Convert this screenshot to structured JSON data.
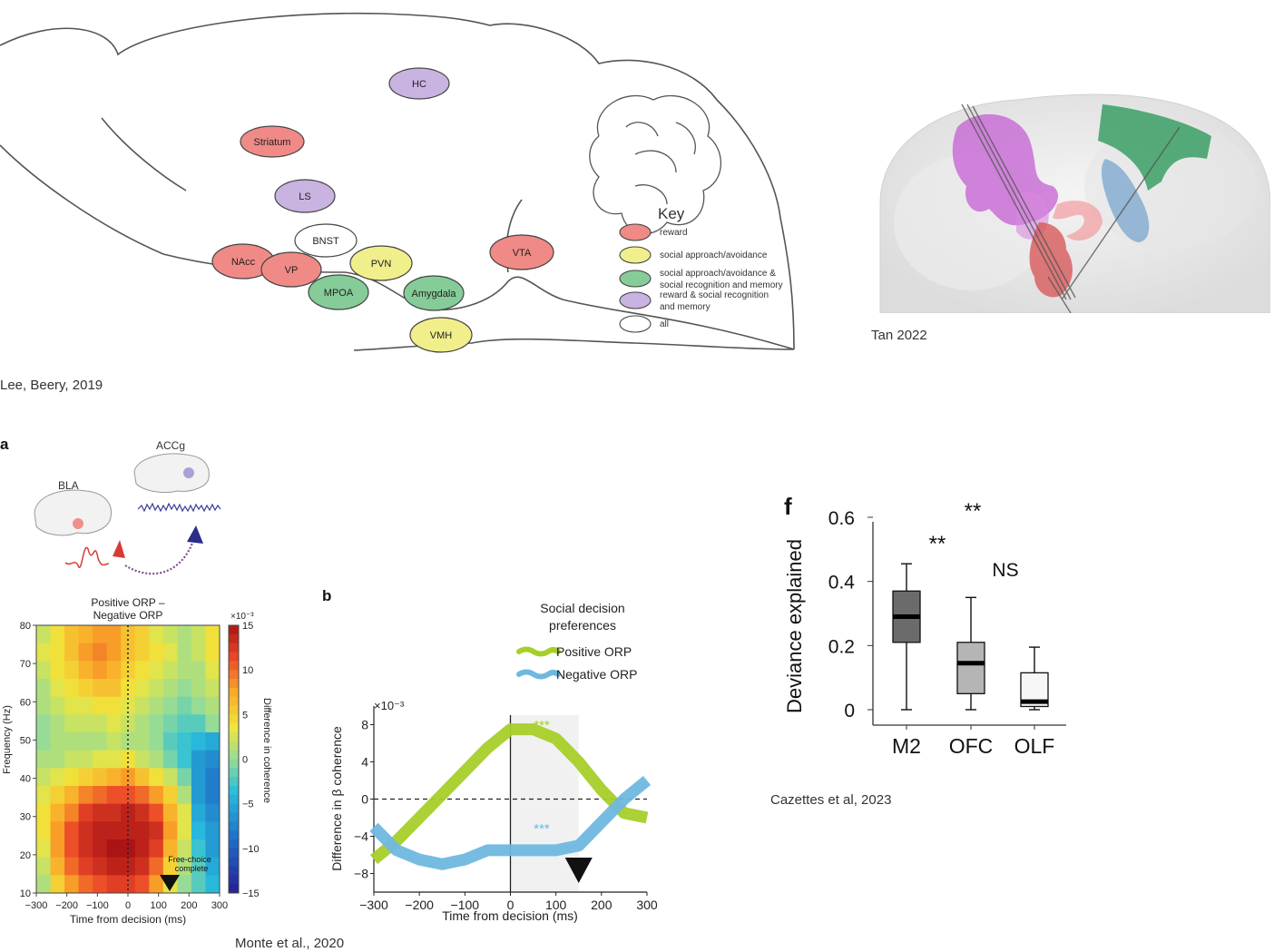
{
  "panel1": {
    "regions": [
      {
        "label": "HC",
        "color": "#c9b3e0"
      },
      {
        "label": "Striatum",
        "color": "#f08a86"
      },
      {
        "label": "LS",
        "color": "#c9b3e0"
      },
      {
        "label": "BNST",
        "color": "#ffffff"
      },
      {
        "label": "NAcc",
        "color": "#f08a86"
      },
      {
        "label": "VP",
        "color": "#f08a86"
      },
      {
        "label": "PVN",
        "color": "#f1ef8c"
      },
      {
        "label": "MPOA",
        "color": "#85cc98"
      },
      {
        "label": "Amygdala",
        "color": "#85cc98"
      },
      {
        "label": "VTA",
        "color": "#f08a86"
      },
      {
        "label": "VMH",
        "color": "#f1ef8c"
      }
    ],
    "key_title": "Key",
    "key": [
      {
        "color": "#f08a86",
        "lines": [
          "reward"
        ]
      },
      {
        "color": "#f1ef8c",
        "lines": [
          "social approach/avoidance"
        ]
      },
      {
        "color": "#85cc98",
        "lines": [
          "social approach/avoidance &",
          "social recognition and memory"
        ]
      },
      {
        "color": "#c9b3e0",
        "lines": [
          "reward & social recognition",
          "and memory"
        ]
      },
      {
        "color": "#ffffff",
        "lines": [
          "all"
        ]
      }
    ],
    "caption": "Lee, Beery, 2019"
  },
  "panel2": {
    "caption": "Tan 2022"
  },
  "panel3": {
    "letter_a": "a",
    "bla_label": "BLA",
    "accg_label": "ACCg",
    "heatmap_title_1": "Positive ORP –",
    "heatmap_title_2": "Negative ORP",
    "colorbar_exp": "×10⁻³",
    "colorbar_ticks": [
      "15",
      "10",
      "5",
      "0",
      "−5",
      "−10",
      "−15"
    ],
    "colorbar_label": "Difference in coherence",
    "y_ticks": [
      "80",
      "70",
      "60",
      "50",
      "40",
      "30",
      "20",
      "10"
    ],
    "x_ticks": [
      "−300",
      "−200",
      "−100",
      "0",
      "100",
      "200",
      "300"
    ],
    "xlabel": "Time from decision (ms)",
    "ylabel": "Frequency (Hz)",
    "annotation_1": "Free-choice",
    "annotation_2": "complete",
    "caption": "Monte et al., 2020"
  },
  "panel4": {
    "letter_b": "b",
    "legend_title_1": "Social decision",
    "legend_title_2": "preferences",
    "series_names": [
      "Positive ORP",
      "Negative ORP"
    ],
    "series_colors": [
      "#a6cf2a",
      "#6fb8df"
    ],
    "exponent": "×10⁻³",
    "ylabel": "Difference in β coherence",
    "xlabel": "Time from decision (ms)",
    "sig_pos": "***",
    "sig_neg": "***"
  },
  "panel5": {
    "letter_f": "f",
    "ylabel": "Deviance explained",
    "sig_1": "**",
    "sig_2": "**",
    "sig_3": "NS",
    "caption": "Cazettes et al, 2023"
  },
  "chart_data": [
    {
      "type": "heatmap",
      "title": "Positive ORP – Negative ORP",
      "xlabel": "Time from decision (ms)",
      "ylabel": "Frequency (Hz)",
      "xlim": [
        -300,
        300
      ],
      "ylim": [
        10,
        80
      ],
      "clim": [
        -15,
        15
      ],
      "colorbar_label": "Difference in coherence",
      "x": [
        -300,
        -250,
        -200,
        -150,
        -100,
        -50,
        0,
        50,
        100,
        150,
        200,
        250,
        300
      ],
      "y": [
        80,
        75,
        70,
        65,
        60,
        55,
        50,
        45,
        40,
        35,
        30,
        25,
        20,
        15,
        10
      ],
      "z": [
        [
          2,
          4,
          6,
          7,
          8,
          8,
          6,
          5,
          3,
          2,
          1,
          2,
          4
        ],
        [
          3,
          4,
          6,
          8,
          9,
          8,
          6,
          5,
          4,
          3,
          1,
          2,
          4
        ],
        [
          2,
          4,
          5,
          7,
          8,
          7,
          5,
          4,
          3,
          2,
          1,
          1,
          3
        ],
        [
          1,
          3,
          4,
          5,
          6,
          6,
          4,
          3,
          2,
          1,
          0,
          1,
          2
        ],
        [
          1,
          2,
          3,
          3,
          4,
          4,
          3,
          2,
          1,
          0,
          -1,
          0,
          1
        ],
        [
          0,
          1,
          2,
          2,
          2,
          3,
          2,
          1,
          0,
          -1,
          -2,
          -2,
          0
        ],
        [
          0,
          1,
          1,
          1,
          1,
          2,
          1,
          1,
          0,
          -2,
          -3,
          -4,
          -5
        ],
        [
          1,
          1,
          2,
          2,
          3,
          3,
          4,
          2,
          1,
          -1,
          -3,
          -6,
          -7
        ],
        [
          2,
          3,
          4,
          5,
          6,
          7,
          8,
          6,
          4,
          2,
          -1,
          -6,
          -8
        ],
        [
          3,
          5,
          7,
          9,
          10,
          11,
          11,
          10,
          8,
          5,
          1,
          -6,
          -8
        ],
        [
          4,
          7,
          9,
          12,
          13,
          13,
          14,
          13,
          11,
          7,
          3,
          -5,
          -7
        ],
        [
          4,
          8,
          11,
          13,
          14,
          14,
          14,
          14,
          13,
          8,
          3,
          -4,
          -6
        ],
        [
          3,
          8,
          11,
          13,
          14,
          15,
          15,
          14,
          12,
          7,
          2,
          -3,
          -6
        ],
        [
          2,
          7,
          10,
          12,
          13,
          14,
          14,
          13,
          10,
          5,
          1,
          -2,
          -5
        ],
        [
          1,
          5,
          8,
          10,
          11,
          12,
          12,
          11,
          8,
          3,
          0,
          -2,
          -4
        ]
      ]
    },
    {
      "type": "line",
      "xlabel": "Time from decision (ms)",
      "ylabel": "Difference in β coherence",
      "xlim": [
        -300,
        300
      ],
      "ylim": [
        -10,
        10
      ],
      "x": [
        -300,
        -250,
        -200,
        -150,
        -100,
        -50,
        0,
        50,
        100,
        150,
        200,
        250,
        300
      ],
      "series": [
        {
          "name": "Positive ORP",
          "values": [
            -6.5,
            -4.5,
            -2,
            0.5,
            3,
            5.5,
            7.5,
            7.5,
            6.5,
            4,
            1,
            -1.5,
            -2
          ]
        },
        {
          "name": "Negative ORP",
          "values": [
            -3,
            -5.5,
            -6.5,
            -7,
            -6.5,
            -5.5,
            -5.5,
            -5.5,
            -5.5,
            -5,
            -2.5,
            0,
            2
          ]
        }
      ]
    },
    {
      "type": "box",
      "ylabel": "Deviance explained",
      "ylim": [
        0,
        0.6
      ],
      "categories": [
        "M2",
        "OFC",
        "OLF"
      ],
      "boxes": [
        {
          "min": 0.0,
          "q1": 0.21,
          "median": 0.29,
          "q3": 0.37,
          "max": 0.455,
          "fill": "#6b6b6b"
        },
        {
          "min": 0.0,
          "q1": 0.05,
          "median": 0.145,
          "q3": 0.21,
          "max": 0.35,
          "fill": "#b5b5b5"
        },
        {
          "min": 0.0,
          "q1": 0.01,
          "median": 0.025,
          "q3": 0.115,
          "max": 0.195,
          "fill": "#f7f7f7"
        }
      ]
    }
  ]
}
